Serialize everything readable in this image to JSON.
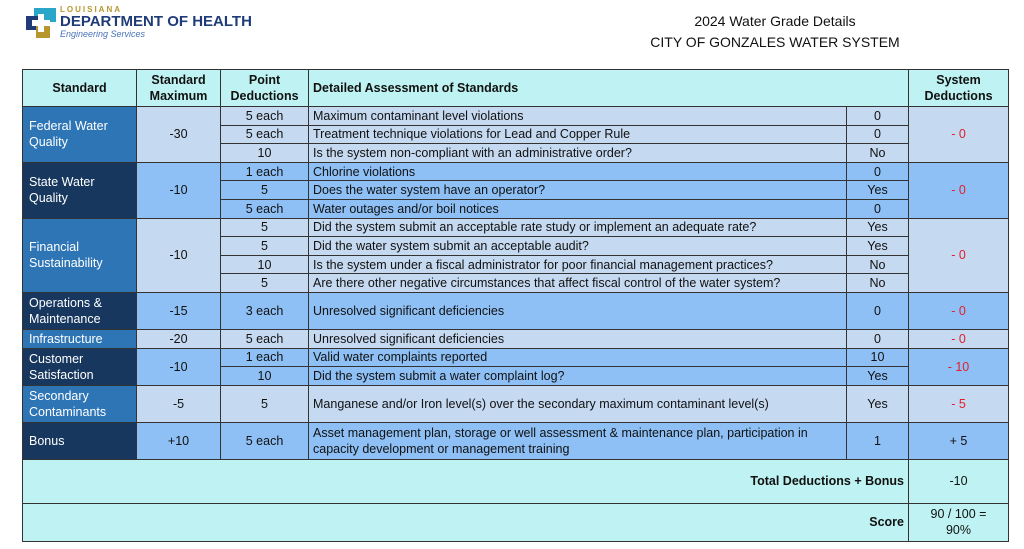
{
  "logo": {
    "state": "LOUISIANA",
    "dept": "DEPARTMENT OF HEALTH",
    "division": "Engineering Services"
  },
  "title": {
    "line1": "2024  Water Grade Details",
    "line2": "CITY OF GONZALES WATER SYSTEM"
  },
  "headers": [
    "Standard",
    "Standard Maximum",
    "Point Deductions",
    "Detailed Assessment of Standards",
    "System Deductions"
  ],
  "sections": [
    {
      "standard": "Federal Water Quality",
      "max": "-30",
      "deduction": "- 0",
      "rows": [
        {
          "points": "5 each",
          "desc": "Maximum contaminant level violations",
          "value": "0"
        },
        {
          "points": "5 each",
          "desc": "Treatment technique violations for Lead and Copper Rule",
          "value": "0"
        },
        {
          "points": "10",
          "desc": "Is the system non-compliant with an administrative order?",
          "value": "No"
        }
      ]
    },
    {
      "standard": "State Water Quality",
      "max": "-10",
      "deduction": "- 0",
      "rows": [
        {
          "points": "1 each",
          "desc": "Chlorine violations",
          "value": "0"
        },
        {
          "points": "5",
          "desc": "Does the water system have an operator?",
          "value": "Yes"
        },
        {
          "points": "5 each",
          "desc": "Water outages and/or boil notices",
          "value": "0"
        }
      ]
    },
    {
      "standard": "Financial Sustainability",
      "max": "-10",
      "deduction": "- 0",
      "rows": [
        {
          "points": "5",
          "desc": "Did the system submit an acceptable rate study or implement an adequate rate?",
          "value": "Yes"
        },
        {
          "points": "5",
          "desc": "Did the water system submit an acceptable audit?",
          "value": "Yes"
        },
        {
          "points": "10",
          "desc": "Is the system under a fiscal administrator for poor financial management practices?",
          "value": "No"
        },
        {
          "points": "5",
          "desc": "Are there other negative circumstances that affect fiscal control of the water system?",
          "value": "No"
        }
      ]
    },
    {
      "standard": "Operations & Maintenance",
      "max": "-15",
      "deduction": "- 0",
      "rows": [
        {
          "points": "3 each",
          "desc": "Unresolved significant deficiencies",
          "value": "0"
        }
      ]
    },
    {
      "standard": "Infrastructure",
      "max": "-20",
      "deduction": "- 0",
      "rows": [
        {
          "points": "5 each",
          "desc": "Unresolved significant deficiencies",
          "value": "0"
        }
      ]
    },
    {
      "standard": "Customer Satisfaction",
      "max": "-10",
      "deduction": "- 10",
      "rows": [
        {
          "points": "1 each",
          "desc": "Valid water complaints reported",
          "value": "10"
        },
        {
          "points": "10",
          "desc": "Did the system submit a water complaint log?",
          "value": "Yes"
        }
      ]
    },
    {
      "standard": "Secondary Contaminants",
      "max": "-5",
      "deduction": "- 5",
      "rows": [
        {
          "points": "5",
          "desc": "Manganese and/or Iron level(s) over the secondary maximum contaminant level(s)",
          "value": "Yes"
        }
      ]
    },
    {
      "standard": "Bonus",
      "max": "+10",
      "deduction": "+ 5",
      "rows": [
        {
          "points": "5 each",
          "desc": "Asset management plan, storage or well assessment & maintenance plan, participation in capacity development or management training",
          "value": "1"
        }
      ]
    }
  ],
  "total": {
    "label": "Total Deductions + Bonus",
    "value": "-10"
  },
  "score": {
    "label": "Score",
    "value": "90 / 100 = 90%"
  },
  "colors": {
    "header": "#bff2f2",
    "light_row": "#c5d9f1",
    "blue_row": "#8ec0f5",
    "std_medium": "#2e75b6",
    "std_navy": "#17375e",
    "negative": "#e0202a"
  }
}
